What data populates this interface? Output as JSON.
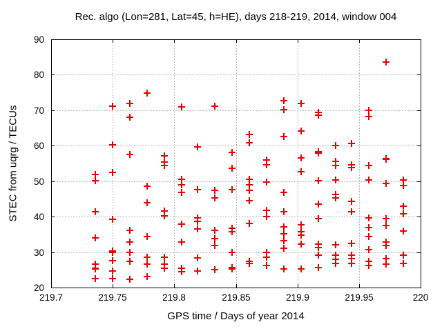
{
  "window": {
    "title": "Rec. algo (Lon=281, Lat=45, h=HE), days 218-219, 2014, window 004"
  },
  "chart_data": {
    "type": "scatter",
    "title": "Rec. algo (Lon=281, Lat=45, h=HE), days 218-219, 2014, window 004",
    "xlabel": "GPS time / Days of year 2014",
    "ylabel": "STEC from uqrg / TECUs",
    "xlim": [
      219.7,
      220
    ],
    "ylim": [
      20,
      90
    ],
    "xticks": [
      219.7,
      219.75,
      219.8,
      219.85,
      219.9,
      219.95,
      220
    ],
    "xtick_labels": [
      "219.7",
      "219.75",
      "219.8",
      "219.85",
      "219.9",
      "219.95",
      "220"
    ],
    "yticks": [
      20,
      30,
      40,
      50,
      60,
      70,
      80,
      90
    ],
    "ytick_labels": [
      "20",
      "30",
      "40",
      "50",
      "60",
      "70",
      "80",
      "90"
    ],
    "grid": true,
    "grid_style": "dashed",
    "grid_color": "#b4b4b4",
    "legend": "none",
    "marker": "plus",
    "marker_color": "#e60000",
    "border_color": "#000000",
    "background": "#ffffff",
    "points": [
      [
        219.736,
        51.8
      ],
      [
        219.736,
        50.1
      ],
      [
        219.736,
        41.3
      ],
      [
        219.736,
        34.0
      ],
      [
        219.736,
        26.7
      ],
      [
        219.736,
        25.5
      ],
      [
        219.736,
        25.2
      ],
      [
        219.736,
        22.5
      ],
      [
        219.75,
        71.1
      ],
      [
        219.75,
        60.3
      ],
      [
        219.75,
        52.5
      ],
      [
        219.75,
        39.2
      ],
      [
        219.75,
        30.4
      ],
      [
        219.75,
        29.9
      ],
      [
        219.75,
        27.6
      ],
      [
        219.75,
        24.7
      ],
      [
        219.75,
        22.5
      ],
      [
        219.764,
        71.9
      ],
      [
        219.764,
        68.1
      ],
      [
        219.764,
        57.6
      ],
      [
        219.764,
        36.2
      ],
      [
        219.764,
        32.8
      ],
      [
        219.764,
        30.0
      ],
      [
        219.764,
        27.4
      ],
      [
        219.764,
        22.3
      ],
      [
        219.778,
        74.8
      ],
      [
        219.778,
        48.5
      ],
      [
        219.778,
        43.9
      ],
      [
        219.778,
        34.4
      ],
      [
        219.778,
        28.6
      ],
      [
        219.778,
        26.7
      ],
      [
        219.778,
        23.2
      ],
      [
        219.792,
        57.1
      ],
      [
        219.792,
        55.3
      ],
      [
        219.792,
        54.4
      ],
      [
        219.792,
        41.6
      ],
      [
        219.792,
        40.3
      ],
      [
        219.792,
        28.6
      ],
      [
        219.792,
        26.7
      ],
      [
        219.792,
        25.4
      ],
      [
        219.806,
        71.0
      ],
      [
        219.806,
        50.6
      ],
      [
        219.806,
        48.9
      ],
      [
        219.806,
        46.8
      ],
      [
        219.806,
        37.8
      ],
      [
        219.806,
        32.8
      ],
      [
        219.806,
        25.5
      ],
      [
        219.806,
        24.5
      ],
      [
        219.819,
        59.7
      ],
      [
        219.819,
        47.7
      ],
      [
        219.819,
        39.6
      ],
      [
        219.819,
        38.6
      ],
      [
        219.819,
        36.5
      ],
      [
        219.819,
        28.3
      ],
      [
        219.819,
        24.7
      ],
      [
        219.833,
        71.1
      ],
      [
        219.833,
        47.4
      ],
      [
        219.833,
        45.3
      ],
      [
        219.833,
        36.1
      ],
      [
        219.833,
        33.9
      ],
      [
        219.833,
        31.9
      ],
      [
        219.833,
        25.1
      ],
      [
        219.847,
        58.1
      ],
      [
        219.847,
        53.6
      ],
      [
        219.847,
        47.7
      ],
      [
        219.847,
        36.7
      ],
      [
        219.847,
        35.8
      ],
      [
        219.847,
        30.0
      ],
      [
        219.847,
        25.6
      ],
      [
        219.847,
        25.2
      ],
      [
        219.861,
        63.1
      ],
      [
        219.861,
        60.8
      ],
      [
        219.861,
        50.6
      ],
      [
        219.861,
        48.9
      ],
      [
        219.861,
        47.4
      ],
      [
        219.861,
        44.5
      ],
      [
        219.861,
        38.0
      ],
      [
        219.861,
        27.3
      ],
      [
        219.861,
        26.8
      ],
      [
        219.875,
        56.0
      ],
      [
        219.875,
        54.7
      ],
      [
        219.875,
        49.7
      ],
      [
        219.875,
        41.7
      ],
      [
        219.875,
        40.0
      ],
      [
        219.875,
        30.0
      ],
      [
        219.875,
        28.6
      ],
      [
        219.875,
        26.3
      ],
      [
        219.889,
        72.6
      ],
      [
        219.889,
        70.2
      ],
      [
        219.889,
        62.6
      ],
      [
        219.889,
        46.9
      ],
      [
        219.889,
        41.4
      ],
      [
        219.889,
        37.2
      ],
      [
        219.889,
        35.2
      ],
      [
        219.889,
        33.3
      ],
      [
        219.889,
        31.0
      ],
      [
        219.889,
        25.2
      ],
      [
        219.903,
        72.0
      ],
      [
        219.903,
        64.1
      ],
      [
        219.903,
        56.6
      ],
      [
        219.903,
        52.6
      ],
      [
        219.903,
        37.6
      ],
      [
        219.903,
        35.7
      ],
      [
        219.903,
        34.8
      ],
      [
        219.903,
        32.2
      ],
      [
        219.903,
        25.2
      ],
      [
        219.917,
        69.4
      ],
      [
        219.917,
        68.6
      ],
      [
        219.917,
        58.3
      ],
      [
        219.917,
        58.0
      ],
      [
        219.917,
        50.1
      ],
      [
        219.917,
        43.5
      ],
      [
        219.917,
        39.4
      ],
      [
        219.917,
        32.3
      ],
      [
        219.917,
        31.3
      ],
      [
        219.917,
        29.1
      ],
      [
        219.917,
        25.6
      ],
      [
        219.931,
        60.0
      ],
      [
        219.931,
        55.5
      ],
      [
        219.931,
        54.4
      ],
      [
        219.931,
        50.3
      ],
      [
        219.931,
        46.3
      ],
      [
        219.931,
        45.3
      ],
      [
        219.931,
        32.0
      ],
      [
        219.931,
        29.1
      ],
      [
        219.931,
        28.0
      ],
      [
        219.931,
        26.9
      ],
      [
        219.944,
        60.6
      ],
      [
        219.944,
        54.7
      ],
      [
        219.944,
        53.9
      ],
      [
        219.944,
        44.4
      ],
      [
        219.944,
        41.4
      ],
      [
        219.944,
        32.4
      ],
      [
        219.944,
        29.1
      ],
      [
        219.944,
        28.1
      ],
      [
        219.944,
        26.8
      ],
      [
        219.958,
        69.9
      ],
      [
        219.958,
        68.2
      ],
      [
        219.958,
        54.4
      ],
      [
        219.958,
        50.3
      ],
      [
        219.958,
        39.6
      ],
      [
        219.958,
        36.9
      ],
      [
        219.958,
        34.3
      ],
      [
        219.958,
        30.7
      ],
      [
        219.958,
        27.3
      ],
      [
        219.958,
        26.3
      ],
      [
        219.972,
        83.6
      ],
      [
        219.972,
        56.4
      ],
      [
        219.972,
        56.1
      ],
      [
        219.972,
        49.3
      ],
      [
        219.972,
        39.4
      ],
      [
        219.972,
        37.5
      ],
      [
        219.972,
        32.8
      ],
      [
        219.972,
        31.8
      ],
      [
        219.972,
        28.2
      ],
      [
        219.972,
        26.6
      ],
      [
        219.986,
        50.3
      ],
      [
        219.986,
        48.8
      ],
      [
        219.986,
        43.0
      ],
      [
        219.986,
        40.9
      ],
      [
        219.986,
        36.0
      ],
      [
        219.986,
        29.2
      ],
      [
        219.986,
        26.9
      ]
    ]
  }
}
